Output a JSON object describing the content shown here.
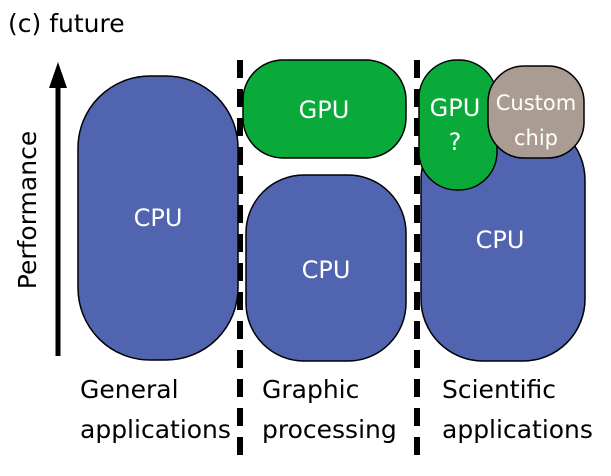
{
  "title": "(c) future",
  "y_axis_label": "Performance",
  "colors": {
    "cpu": "#5064b0",
    "gpu": "#0aaa3a",
    "custom": "#aa9c92"
  },
  "columns": [
    {
      "label_line1": "General",
      "label_line2": "applications",
      "blocks": [
        "CPU"
      ]
    },
    {
      "label_line1": "Graphic",
      "label_line2": "processing",
      "blocks": [
        "GPU",
        "CPU"
      ]
    },
    {
      "label_line1": "Scientific",
      "label_line2": "applications",
      "blocks": [
        "CPU",
        "GPU",
        "?",
        "Custom",
        "chip"
      ]
    }
  ]
}
